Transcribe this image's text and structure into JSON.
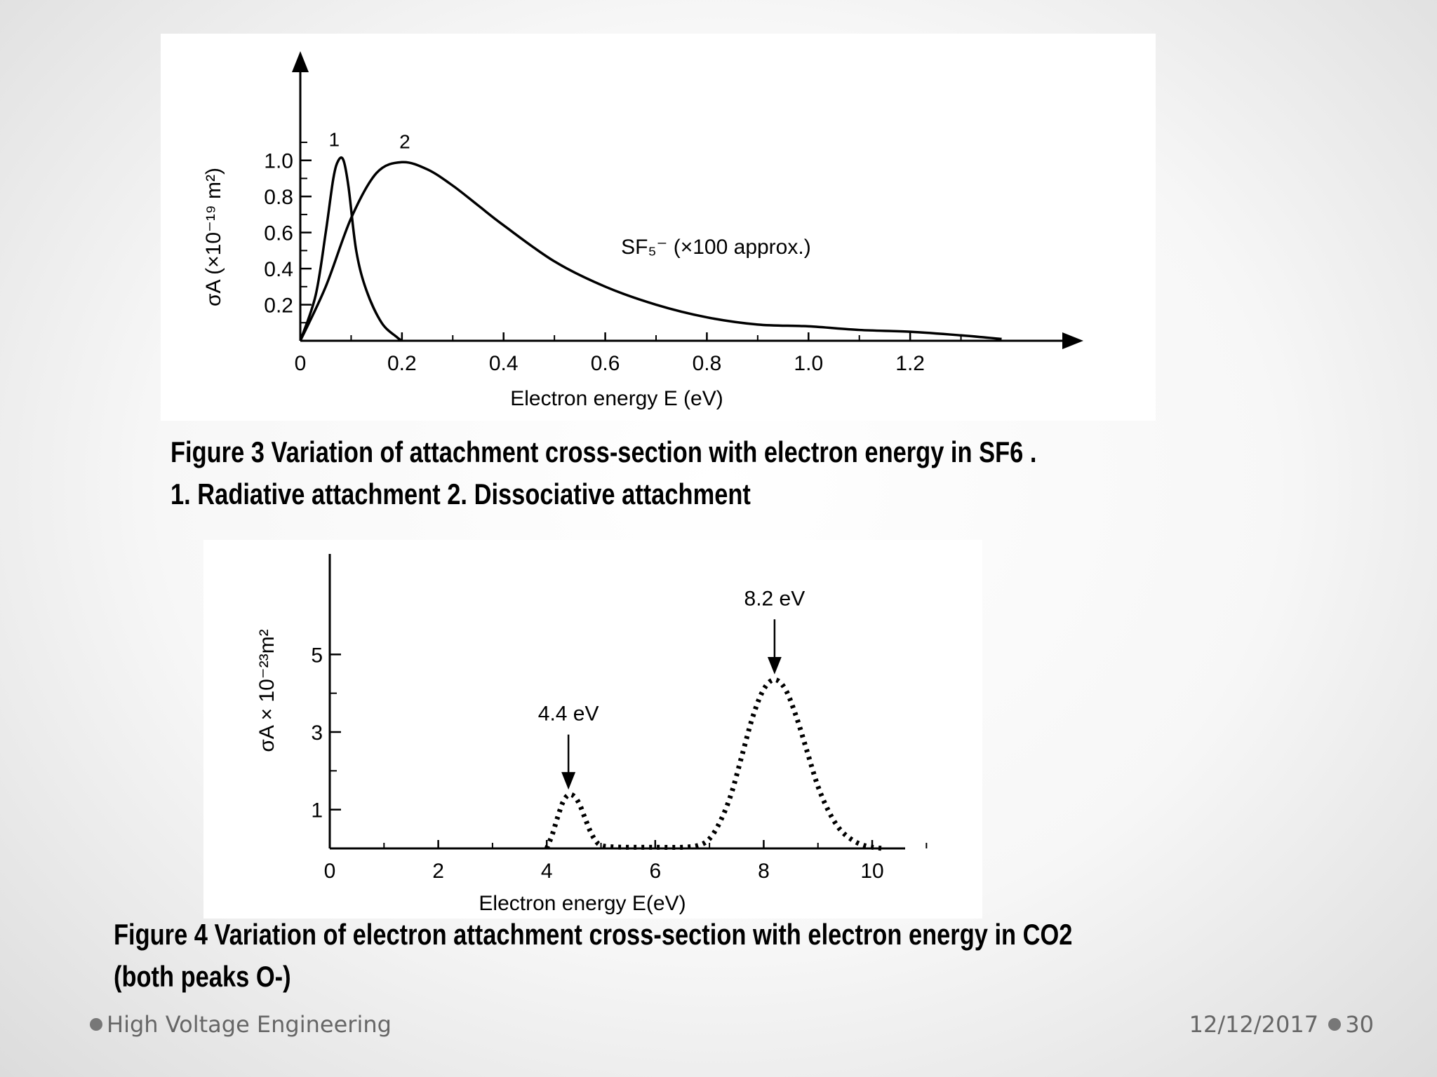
{
  "slide": {
    "caption_1": {
      "line1": "Figure 3 Variation of attachment cross-section with electron energy in SF6 .",
      "line2": "1. Radiative attachment 2. Dissociative attachment"
    },
    "caption_2": {
      "line1": "Figure 4 Variation of electron attachment cross-section with electron energy in CO2",
      "line2": "(both peaks O-)"
    },
    "footer": {
      "left": "High Voltage Engineering",
      "date": "12/12/2017",
      "page": "30"
    }
  },
  "chart_data": [
    {
      "type": "line",
      "xlabel": "Electron energy E (eV)",
      "ylabel": "σA (×10⁻¹⁹ m²)",
      "xlim": [
        0,
        1.4
      ],
      "ylim": [
        0,
        1.1
      ],
      "x_ticks": [
        "0",
        "0.2",
        "0.4",
        "0.6",
        "0.8",
        "1.0",
        "1.2"
      ],
      "y_ticks": [
        "0.2",
        "0.4",
        "0.6",
        "0.8",
        "1.0"
      ],
      "series": [
        {
          "name": "1",
          "x": [
            0,
            0.03,
            0.05,
            0.065,
            0.075,
            0.085,
            0.095,
            0.11,
            0.13,
            0.16,
            0.19,
            0.2
          ],
          "y": [
            0,
            0.25,
            0.6,
            0.9,
            1.0,
            1.0,
            0.85,
            0.5,
            0.28,
            0.1,
            0.02,
            0
          ]
        },
        {
          "name": "2",
          "x": [
            0,
            0.05,
            0.1,
            0.15,
            0.2,
            0.25,
            0.3,
            0.35,
            0.4,
            0.5,
            0.6,
            0.7,
            0.8,
            0.9,
            1.0,
            1.1,
            1.2,
            1.3,
            1.38
          ],
          "y": [
            0,
            0.3,
            0.68,
            0.93,
            0.99,
            0.95,
            0.86,
            0.75,
            0.64,
            0.44,
            0.3,
            0.2,
            0.13,
            0.09,
            0.08,
            0.06,
            0.05,
            0.03,
            0.01
          ]
        }
      ],
      "annotations": [
        {
          "text": "SF₅⁻ (×100 approx.)",
          "x": 0.5,
          "y": 0.52
        }
      ]
    },
    {
      "type": "line",
      "xlabel": "Electron energy E(eV)",
      "ylabel": "σA × 10⁻²³m²",
      "xlim": [
        0,
        11.5
      ],
      "ylim": [
        0,
        6
      ],
      "x_ticks": [
        "0",
        "2",
        "4",
        "6",
        "8",
        "10"
      ],
      "y_ticks": [
        "1",
        "3",
        "5"
      ],
      "series": [
        {
          "x": [
            4.0,
            4.1,
            4.2,
            4.3,
            4.4,
            4.5,
            4.6,
            4.7,
            4.8,
            4.9,
            5.0,
            5.2,
            5.5,
            6.0,
            6.5,
            6.8,
            7.0,
            7.2,
            7.4,
            7.6,
            7.8,
            8.0,
            8.2,
            8.4,
            8.6,
            8.8,
            9.0,
            9.2,
            9.4,
            9.6,
            9.8,
            10.0,
            10.2
          ],
          "y": [
            0,
            0.35,
            0.8,
            1.2,
            1.38,
            1.35,
            1.15,
            0.8,
            0.45,
            0.2,
            0.08,
            0.04,
            0.03,
            0.03,
            0.03,
            0.08,
            0.25,
            0.7,
            1.4,
            2.4,
            3.4,
            4.1,
            4.35,
            4.1,
            3.4,
            2.5,
            1.6,
            0.95,
            0.5,
            0.25,
            0.1,
            0.03,
            0
          ]
        }
      ],
      "annotations": [
        {
          "text": "4.4 eV",
          "x": 4.4,
          "y": 1.38
        },
        {
          "text": "8.2 eV",
          "x": 8.2,
          "y": 4.35
        }
      ]
    }
  ]
}
